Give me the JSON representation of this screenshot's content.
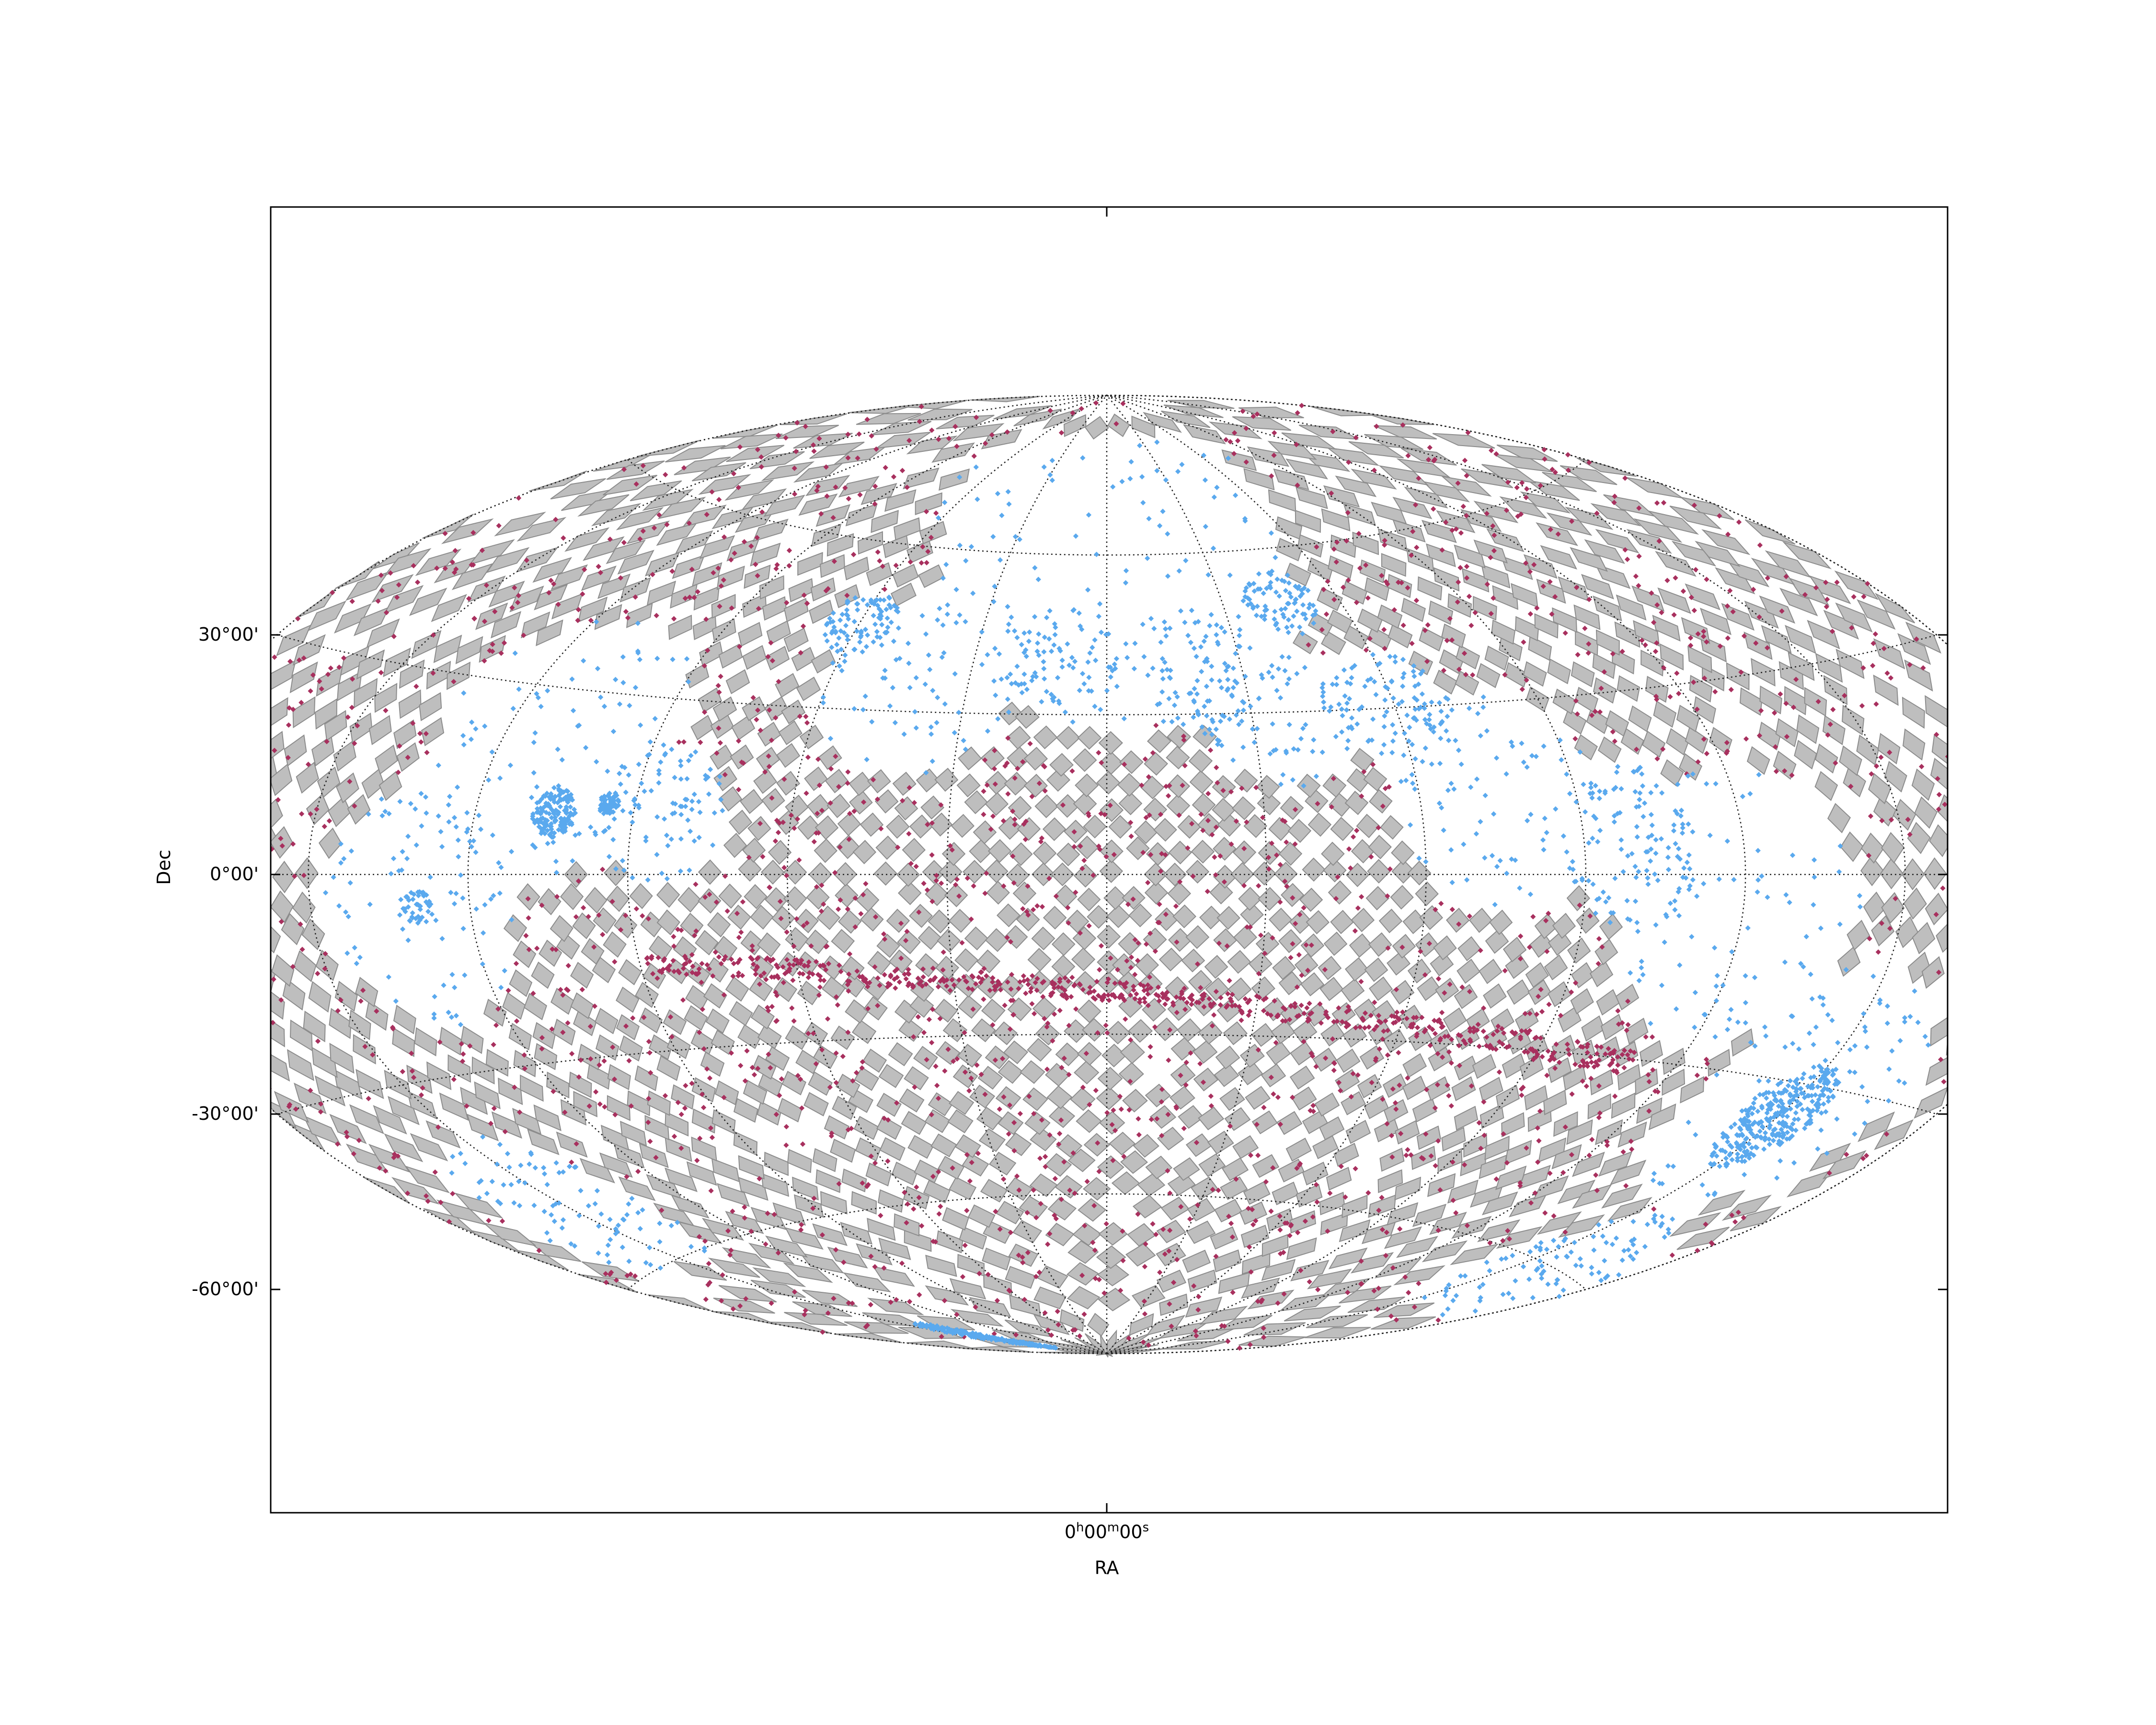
{
  "chart_data": {
    "type": "scatter",
    "projection": "Aitoff (all-sky, RA/Dec)",
    "title": "",
    "xlabel": "RA",
    "ylabel": "Dec",
    "x_tick_labels": [
      {
        "ra_hours": 0,
        "label_h": "0",
        "sup_h": "h",
        "label_m": "00",
        "sup_m": "m",
        "label_s": "00",
        "sup_s": "s"
      }
    ],
    "y_tick_labels": [
      {
        "dec": 30,
        "label": "30°00'"
      },
      {
        "dec": 0,
        "label": "0°00'"
      },
      {
        "dec": -30,
        "label": "-30°00'"
      },
      {
        "dec": -60,
        "label": "-60°00'"
      }
    ],
    "grid": true,
    "grid_style": "dotted",
    "legend": "none",
    "layers": [
      {
        "name": "footprint",
        "kind": "healpix-tiles",
        "color": "#bebebe",
        "edge_color": "#8c8c8c"
      },
      {
        "name": "sources-a",
        "kind": "points",
        "color": "#a8305e"
      },
      {
        "name": "sources-b",
        "kind": "points",
        "color": "#5aa9ee"
      }
    ]
  }
}
